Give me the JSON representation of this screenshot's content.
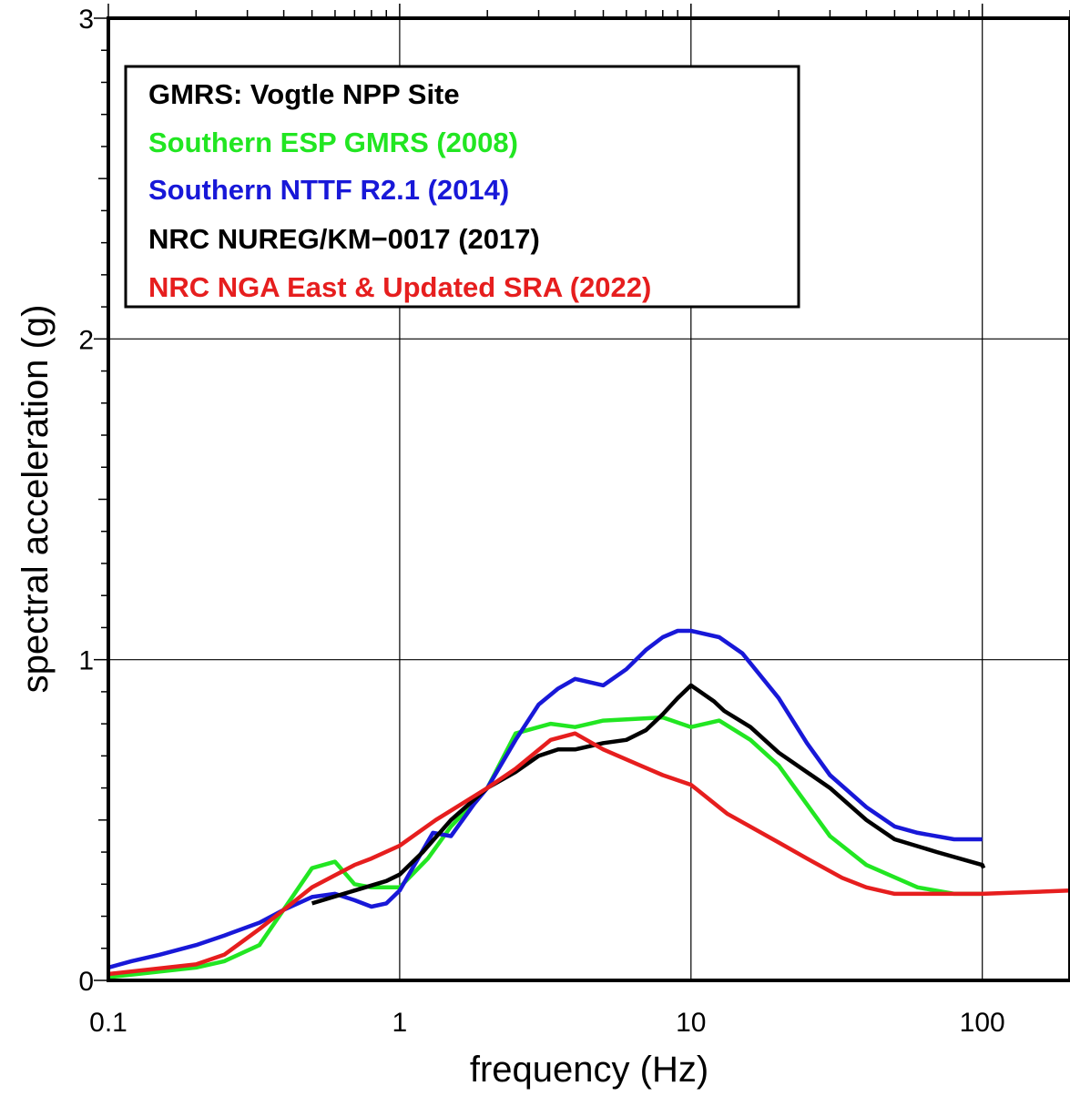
{
  "chart_data": {
    "type": "line",
    "xscale": "log",
    "xlim": [
      0.1,
      200
    ],
    "ylim": [
      0,
      3
    ],
    "xlabel": "frequency (Hz)",
    "ylabel": "spectral acceleration (g)",
    "xticks": [
      "0.1",
      "1",
      "10",
      "100"
    ],
    "yticks": [
      "0",
      "1",
      "2",
      "3"
    ],
    "grid": true,
    "legend_placement": "top-left",
    "legend_title": "GMRS: Vogtle NPP Site",
    "series": [
      {
        "name": "Southern ESP GMRS (2008)",
        "color": "#22e622",
        "points": [
          [
            0.1,
            0.01
          ],
          [
            0.2,
            0.04
          ],
          [
            0.25,
            0.06
          ],
          [
            0.33,
            0.11
          ],
          [
            0.5,
            0.35
          ],
          [
            0.6,
            0.37
          ],
          [
            0.7,
            0.3
          ],
          [
            0.8,
            0.29
          ],
          [
            1.0,
            0.29
          ],
          [
            1.25,
            0.38
          ],
          [
            1.5,
            0.48
          ],
          [
            2.0,
            0.6
          ],
          [
            2.5,
            0.77
          ],
          [
            3.3,
            0.8
          ],
          [
            4.0,
            0.79
          ],
          [
            5.0,
            0.81
          ],
          [
            8.0,
            0.82
          ],
          [
            10.0,
            0.79
          ],
          [
            12.5,
            0.81
          ],
          [
            16.0,
            0.75
          ],
          [
            20.0,
            0.67
          ],
          [
            30.0,
            0.45
          ],
          [
            40.0,
            0.36
          ],
          [
            60.0,
            0.29
          ],
          [
            80.0,
            0.27
          ],
          [
            100.0,
            0.27
          ]
        ]
      },
      {
        "name": "Southern NTTF R2.1 (2014)",
        "color": "#1818d8",
        "points": [
          [
            0.1,
            0.04
          ],
          [
            0.12,
            0.06
          ],
          [
            0.15,
            0.08
          ],
          [
            0.2,
            0.11
          ],
          [
            0.25,
            0.14
          ],
          [
            0.33,
            0.18
          ],
          [
            0.4,
            0.22
          ],
          [
            0.5,
            0.26
          ],
          [
            0.6,
            0.27
          ],
          [
            0.7,
            0.25
          ],
          [
            0.8,
            0.23
          ],
          [
            0.9,
            0.24
          ],
          [
            1.0,
            0.28
          ],
          [
            1.3,
            0.46
          ],
          [
            1.5,
            0.45
          ],
          [
            1.8,
            0.55
          ],
          [
            2.0,
            0.6
          ],
          [
            2.5,
            0.75
          ],
          [
            3.0,
            0.86
          ],
          [
            3.5,
            0.91
          ],
          [
            4.0,
            0.94
          ],
          [
            5.0,
            0.92
          ],
          [
            6.0,
            0.97
          ],
          [
            7.0,
            1.03
          ],
          [
            8.0,
            1.07
          ],
          [
            9.0,
            1.09
          ],
          [
            10.0,
            1.09
          ],
          [
            12.5,
            1.07
          ],
          [
            15.0,
            1.02
          ],
          [
            20.0,
            0.88
          ],
          [
            25.0,
            0.74
          ],
          [
            30.0,
            0.64
          ],
          [
            40.0,
            0.54
          ],
          [
            50.0,
            0.48
          ],
          [
            60.0,
            0.46
          ],
          [
            80.0,
            0.44
          ],
          [
            100.0,
            0.44
          ]
        ]
      },
      {
        "name": "NRC NUREG/KM−0017 (2017)",
        "color": "#000000",
        "points": [
          [
            0.5,
            0.24
          ],
          [
            0.7,
            0.28
          ],
          [
            0.9,
            0.31
          ],
          [
            1.0,
            0.33
          ],
          [
            1.2,
            0.4
          ],
          [
            1.5,
            0.5
          ],
          [
            2.0,
            0.6
          ],
          [
            2.5,
            0.65
          ],
          [
            3.0,
            0.7
          ],
          [
            3.5,
            0.72
          ],
          [
            4.0,
            0.72
          ],
          [
            5.0,
            0.74
          ],
          [
            6.0,
            0.75
          ],
          [
            7.0,
            0.78
          ],
          [
            8.0,
            0.83
          ],
          [
            9.0,
            0.88
          ],
          [
            10.0,
            0.92
          ],
          [
            12.0,
            0.87
          ],
          [
            13.0,
            0.84
          ],
          [
            16.0,
            0.79
          ],
          [
            20.0,
            0.71
          ],
          [
            30.0,
            0.6
          ],
          [
            40.0,
            0.5
          ],
          [
            50.0,
            0.44
          ],
          [
            70.0,
            0.4
          ],
          [
            100.0,
            0.36
          ],
          [
            101.0,
            0.35
          ]
        ]
      },
      {
        "name": "NRC NGA East & Updated SRA (2022)",
        "color": "#e61e1e",
        "points": [
          [
            0.1,
            0.02
          ],
          [
            0.2,
            0.05
          ],
          [
            0.25,
            0.08
          ],
          [
            0.33,
            0.16
          ],
          [
            0.4,
            0.22
          ],
          [
            0.5,
            0.29
          ],
          [
            0.7,
            0.36
          ],
          [
            0.8,
            0.38
          ],
          [
            1.0,
            0.42
          ],
          [
            1.33,
            0.5
          ],
          [
            1.7,
            0.56
          ],
          [
            2.0,
            0.6
          ],
          [
            2.5,
            0.66
          ],
          [
            3.3,
            0.75
          ],
          [
            4.0,
            0.77
          ],
          [
            5.0,
            0.72
          ],
          [
            6.7,
            0.67
          ],
          [
            8.0,
            0.64
          ],
          [
            10.0,
            0.61
          ],
          [
            13.3,
            0.52
          ],
          [
            20.0,
            0.43
          ],
          [
            25.0,
            0.38
          ],
          [
            33.0,
            0.32
          ],
          [
            40.0,
            0.29
          ],
          [
            50.0,
            0.27
          ],
          [
            100.0,
            0.27
          ],
          [
            200.0,
            0.28
          ]
        ]
      }
    ]
  }
}
